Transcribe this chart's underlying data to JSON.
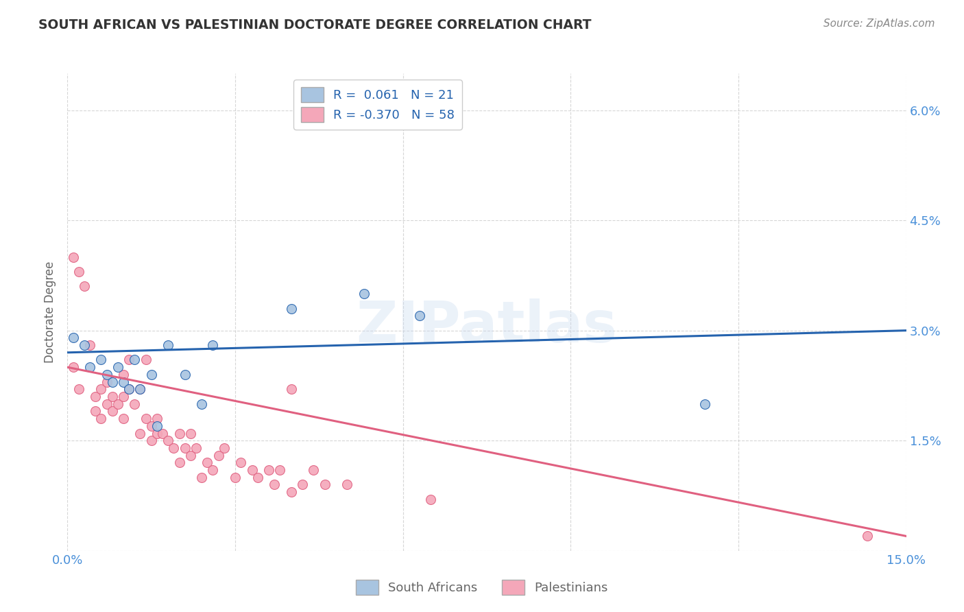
{
  "title": "SOUTH AFRICAN VS PALESTINIAN DOCTORATE DEGREE CORRELATION CHART",
  "source": "Source: ZipAtlas.com",
  "ylabel": "Doctorate Degree",
  "xlim": [
    0.0,
    0.15
  ],
  "ylim": [
    0.0,
    0.065
  ],
  "south_african_R": 0.061,
  "south_african_N": 21,
  "palestinian_R": -0.37,
  "palestinian_N": 58,
  "sa_color": "#a8c4e0",
  "pal_color": "#f4a7b9",
  "sa_line_color": "#2563ae",
  "pal_line_color": "#e06080",
  "background_color": "#ffffff",
  "grid_color": "#cccccc",
  "watermark": "ZIPatlas",
  "title_color": "#333333",
  "label_color": "#666666",
  "tick_color": "#4a90d9",
  "south_africans_x": [
    0.001,
    0.003,
    0.004,
    0.006,
    0.007,
    0.008,
    0.009,
    0.01,
    0.011,
    0.012,
    0.013,
    0.015,
    0.016,
    0.018,
    0.021,
    0.024,
    0.026,
    0.04,
    0.053,
    0.063,
    0.114
  ],
  "south_africans_y": [
    0.029,
    0.028,
    0.025,
    0.026,
    0.024,
    0.023,
    0.025,
    0.023,
    0.022,
    0.026,
    0.022,
    0.024,
    0.017,
    0.028,
    0.024,
    0.02,
    0.028,
    0.033,
    0.035,
    0.032,
    0.02
  ],
  "palestinians_x": [
    0.001,
    0.001,
    0.002,
    0.002,
    0.003,
    0.004,
    0.005,
    0.005,
    0.006,
    0.006,
    0.007,
    0.007,
    0.008,
    0.008,
    0.009,
    0.01,
    0.01,
    0.01,
    0.011,
    0.011,
    0.012,
    0.013,
    0.013,
    0.014,
    0.014,
    0.015,
    0.015,
    0.016,
    0.016,
    0.017,
    0.018,
    0.019,
    0.02,
    0.02,
    0.021,
    0.022,
    0.022,
    0.023,
    0.024,
    0.025,
    0.026,
    0.027,
    0.028,
    0.03,
    0.031,
    0.033,
    0.034,
    0.036,
    0.037,
    0.038,
    0.04,
    0.04,
    0.042,
    0.044,
    0.046,
    0.05,
    0.065,
    0.143
  ],
  "palestinians_y": [
    0.04,
    0.025,
    0.038,
    0.022,
    0.036,
    0.028,
    0.021,
    0.019,
    0.022,
    0.018,
    0.02,
    0.023,
    0.019,
    0.021,
    0.02,
    0.024,
    0.021,
    0.018,
    0.022,
    0.026,
    0.02,
    0.022,
    0.016,
    0.026,
    0.018,
    0.015,
    0.017,
    0.016,
    0.018,
    0.016,
    0.015,
    0.014,
    0.016,
    0.012,
    0.014,
    0.016,
    0.013,
    0.014,
    0.01,
    0.012,
    0.011,
    0.013,
    0.014,
    0.01,
    0.012,
    0.011,
    0.01,
    0.011,
    0.009,
    0.011,
    0.008,
    0.022,
    0.009,
    0.011,
    0.009,
    0.009,
    0.007,
    0.002
  ],
  "sa_line_x0": 0.0,
  "sa_line_y0": 0.027,
  "sa_line_x1": 0.15,
  "sa_line_y1": 0.03,
  "pal_line_x0": 0.0,
  "pal_line_y0": 0.025,
  "pal_line_x1": 0.15,
  "pal_line_y1": 0.002
}
